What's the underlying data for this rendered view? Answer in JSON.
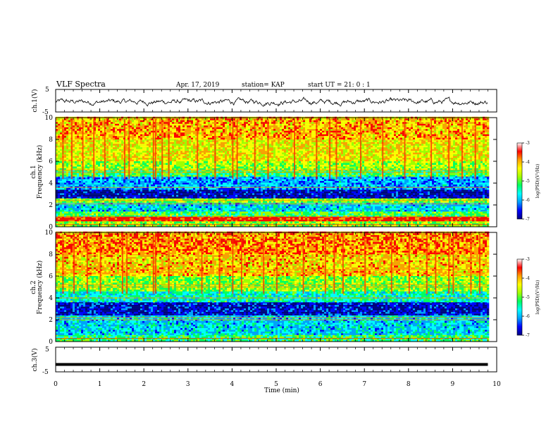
{
  "header": {
    "title": "VLF Spectra",
    "date": "Apr. 17, 2019",
    "station": "station= KAP",
    "start": "start  UT =   21: 0  : 1"
  },
  "chart_data": {
    "type": "heatmap",
    "xlabel": "Time  (min)",
    "xlim": [
      0,
      10
    ],
    "x_ticks": [
      "0",
      "1",
      "2",
      "3",
      "4",
      "5",
      "6",
      "7",
      "8",
      "9",
      "10"
    ],
    "panels": [
      {
        "id": "ch1-waveform",
        "type": "line",
        "ylabel": "ch.1(V)",
        "ylim": [
          -5,
          5
        ],
        "y_ticks": [
          "5",
          "-5"
        ],
        "description": "noisy waveform around -0.5 V, range approx -3 to 3 V",
        "x_end": 9.8
      },
      {
        "id": "ch1-spectrum",
        "type": "heatmap",
        "ylabel_line1": "ch.1",
        "ylabel_line2": "Frequency  (kHz)",
        "ylim": [
          0,
          10
        ],
        "y_ticks": [
          "0",
          "2",
          "4",
          "6",
          "8",
          "10"
        ],
        "x_end": 9.8,
        "bands": [
          {
            "from": 0.0,
            "to": 0.5,
            "level": -4.6
          },
          {
            "from": 0.5,
            "to": 0.9,
            "level": -3.2
          },
          {
            "from": 0.9,
            "to": 1.4,
            "level": -4.9
          },
          {
            "from": 1.4,
            "to": 2.2,
            "level": -5.6
          },
          {
            "from": 2.2,
            "to": 2.6,
            "level": -4.6
          },
          {
            "from": 2.6,
            "to": 3.4,
            "level": -6.6
          },
          {
            "from": 3.4,
            "to": 4.6,
            "level": -5.8
          },
          {
            "from": 4.6,
            "to": 5.2,
            "level": -4.9
          },
          {
            "from": 5.2,
            "to": 6.0,
            "level": -4.5
          },
          {
            "from": 6.0,
            "to": 8.0,
            "level": -4.1
          },
          {
            "from": 8.0,
            "to": 10.0,
            "level": -3.8
          }
        ],
        "lines_khz": [
          0.2,
          0.6,
          0.9,
          2.1,
          2.4,
          3.6,
          5.0,
          5.2
        ],
        "bursts_min": [
          0.15,
          0.35,
          0.6,
          0.85,
          1.1,
          1.55,
          1.65,
          2.2,
          2.25,
          2.4,
          2.55,
          3.2,
          3.6,
          4.0,
          4.1,
          4.5,
          4.8,
          5.4,
          5.9,
          6.2,
          6.35,
          6.9,
          7.4,
          7.9,
          8.5,
          8.9,
          9.2,
          9.5
        ]
      },
      {
        "id": "ch2-spectrum",
        "type": "heatmap",
        "ylabel_line1": "ch.2",
        "ylabel_line2": "Frequency  (kHz)",
        "ylim": [
          0,
          10
        ],
        "y_ticks": [
          "0",
          "2",
          "4",
          "6",
          "8",
          "10"
        ],
        "x_end": 9.8,
        "bands": [
          {
            "from": 0.0,
            "to": 0.6,
            "level": -5.0
          },
          {
            "from": 0.6,
            "to": 2.4,
            "level": -5.6
          },
          {
            "from": 2.4,
            "to": 3.6,
            "level": -6.5
          },
          {
            "from": 3.6,
            "to": 4.6,
            "level": -5.3
          },
          {
            "from": 4.6,
            "to": 6.0,
            "level": -4.6
          },
          {
            "from": 6.0,
            "to": 8.0,
            "level": -3.9
          },
          {
            "from": 8.0,
            "to": 10.0,
            "level": -3.6
          }
        ],
        "lines_khz": [
          0.3,
          2.0,
          2.2,
          4.0,
          5.0,
          5.2,
          6.3,
          6.6
        ],
        "bursts_min": [
          0.15,
          0.4,
          0.7,
          1.0,
          1.5,
          1.6,
          2.2,
          2.25,
          2.55,
          3.3,
          3.7,
          4.0,
          4.2,
          4.7,
          5.0,
          5.6,
          6.1,
          6.3,
          6.5,
          7.0,
          7.6,
          8.0,
          8.4,
          8.6,
          8.9,
          9.0,
          9.4,
          9.6
        ]
      },
      {
        "id": "ch3-waveform",
        "type": "line",
        "ylabel": "ch.3(V)",
        "ylim": [
          -5,
          5
        ],
        "y_ticks": [
          "5",
          "-5"
        ],
        "description": "flat thick line at about -2 V",
        "x_end": 9.8,
        "value": -2
      }
    ],
    "colorbar": {
      "label": "log(PSD)(V²/Hz)",
      "range": [
        -7,
        -3
      ],
      "ticks": [
        "-3",
        "-4",
        "-5",
        "-6",
        "-7"
      ],
      "colormap": [
        "#000080",
        "#0000ff",
        "#00a0ff",
        "#00ffff",
        "#00ff60",
        "#a0ff00",
        "#ffff00",
        "#ffa000",
        "#ff0000",
        "#ffffff"
      ]
    }
  }
}
